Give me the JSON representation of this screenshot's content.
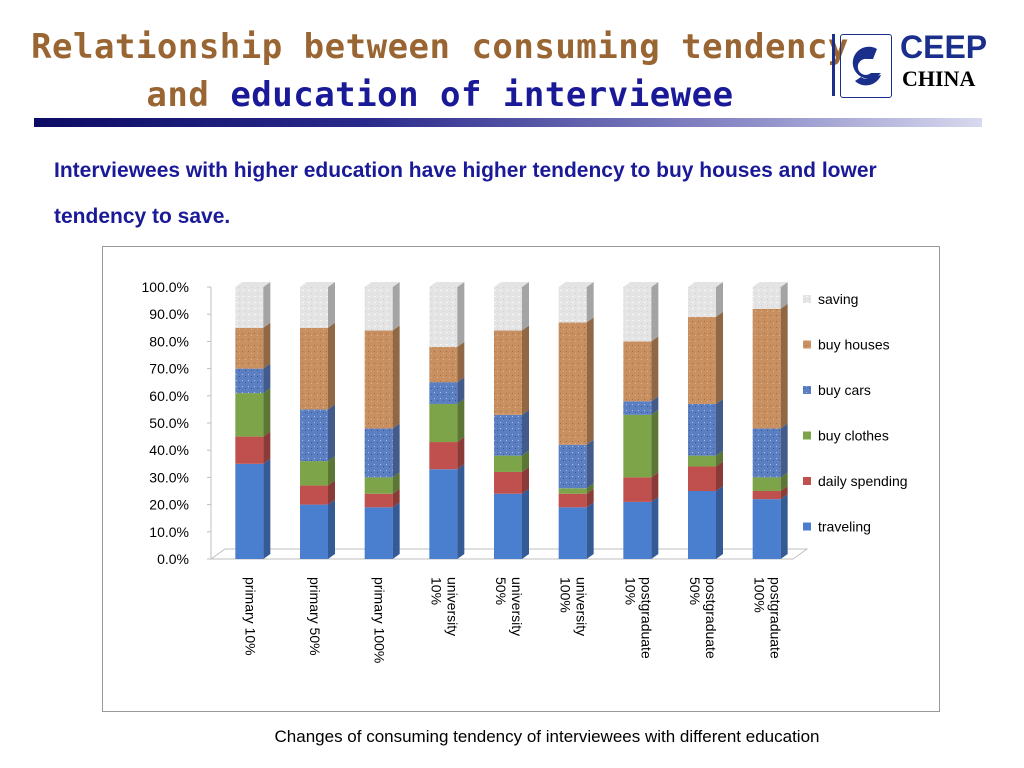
{
  "slide": {
    "title_line1": "Relationship between consuming tendency",
    "title_line2_part1": "and",
    "title_line2_part2": "education of interviewee",
    "subtitle": "Interviewees with higher education have higher tendency to buy houses and lower tendency to save.",
    "caption": "Changes of consuming tendency of interviewees with different education",
    "logo": {
      "top_text": "CEEP",
      "bottom_text": "CHINA",
      "icon": "ceep-logo-icon"
    },
    "colors": {
      "title_brown": "#996633",
      "title_navy": "#1a1a99",
      "subtitle": "#1a1a99"
    }
  },
  "chart_data": {
    "type": "bar",
    "stacked": true,
    "categories": [
      "primary 10%",
      "primary 50%",
      "primary 100%",
      "university 10%",
      "university 50%",
      "university 100%",
      "postgraduate 10%",
      "postgraduate 50%",
      "postgraduate 100%"
    ],
    "series": [
      {
        "name": "traveling",
        "color": "#4a7fd0",
        "values": [
          35,
          20,
          19,
          33,
          24,
          19,
          21,
          25,
          22
        ]
      },
      {
        "name": "daily spending",
        "color": "#c0504d",
        "values": [
          10,
          7,
          5,
          10,
          8,
          5,
          9,
          9,
          3
        ]
      },
      {
        "name": "buy clothes",
        "color": "#7ea44a",
        "values": [
          16,
          9,
          6,
          14,
          6,
          2,
          23,
          4,
          5
        ]
      },
      {
        "name": "buy cars",
        "color": "#5b7fc0",
        "values": [
          9,
          19,
          18,
          8,
          15,
          16,
          5,
          19,
          18
        ]
      },
      {
        "name": "buy houses",
        "color": "#c89060",
        "values": [
          15,
          30,
          36,
          13,
          31,
          45,
          22,
          32,
          44
        ]
      },
      {
        "name": "saving",
        "color": "#e4e4e4",
        "values": [
          15,
          15,
          16,
          22,
          16,
          13,
          20,
          11,
          8
        ]
      }
    ],
    "yticks": [
      "0.0%",
      "10.0%",
      "20.0%",
      "30.0%",
      "40.0%",
      "50.0%",
      "60.0%",
      "70.0%",
      "80.0%",
      "90.0%",
      "100.0%"
    ],
    "ylim": [
      0,
      100
    ],
    "legend_position": "right",
    "legend_order": [
      "saving",
      "buy houses",
      "buy cars",
      "buy clothes",
      "daily spending",
      "traveling"
    ]
  }
}
